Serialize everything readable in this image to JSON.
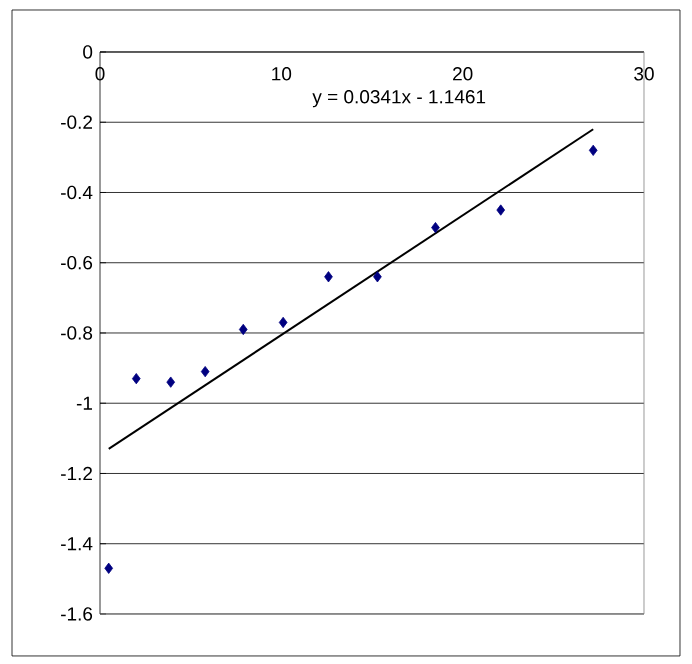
{
  "chart_data": {
    "type": "scatter",
    "grid": "y",
    "xlim": [
      0,
      30
    ],
    "xticks": [
      0,
      10,
      20,
      30
    ],
    "ylim": [
      -1.6,
      0
    ],
    "yticks": [
      -1.6,
      -1.4,
      -1.2,
      -1,
      -0.8,
      -0.6,
      -0.4,
      -0.2,
      0
    ],
    "annotations": [
      "y = 0.0341x - 1.1461"
    ],
    "series": [
      {
        "marker": "diamond",
        "color": "#000080",
        "x": [
          0.48,
          2.0,
          3.9,
          5.8,
          7.9,
          10.1,
          12.6,
          15.3,
          18.5,
          22.1,
          27.2
        ],
        "values": [
          -1.47,
          -0.93,
          -0.94,
          -0.91,
          -0.79,
          -0.77,
          -0.64,
          -0.64,
          -0.5,
          -0.45,
          -0.28
        ]
      },
      {
        "type": "line",
        "marker": "none",
        "color": "#000000",
        "line_style": "solid",
        "x": [
          0.48,
          27.2
        ],
        "values": [
          -1.13,
          -0.22
        ]
      }
    ]
  }
}
